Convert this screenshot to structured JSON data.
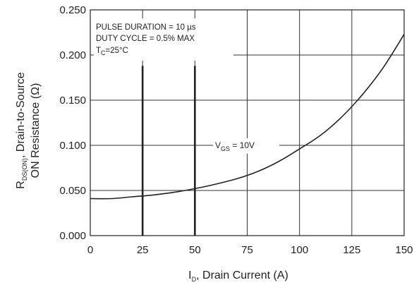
{
  "chart_data": {
    "type": "line",
    "xlabel": {
      "pre": "I",
      "sub": "D",
      "post": ", Drain Current (A)"
    },
    "ylabel": {
      "line1_pre": "R",
      "line1_sub": "DS(ON)",
      "line1_post": ", Drain-to-Source",
      "line2": "ON Resistance (Ω)"
    },
    "xlim": [
      0,
      150
    ],
    "ylim": [
      0,
      0.25
    ],
    "x_ticks": [
      0,
      25,
      50,
      75,
      100,
      125,
      150
    ],
    "x_tick_labels": [
      "0",
      "25",
      "50",
      "75",
      "100",
      "125",
      "150"
    ],
    "y_ticks": [
      0,
      0.05,
      0.1,
      0.15,
      0.2,
      0.25
    ],
    "y_tick_labels": [
      "0.000",
      "0.050",
      "0.100",
      "0.150",
      "0.200",
      "0.250"
    ],
    "grid": true,
    "notes": {
      "line1": "PULSE DURATION = 10 µs",
      "line2": "DUTY CYCLE = 0.5% MAX",
      "line3_pre": "T",
      "line3_sub": "C",
      "line3_post": "=25°C"
    },
    "curve_label": {
      "pre": "V",
      "sub": "GS",
      "post": " = 10V"
    },
    "series": [
      {
        "x": [
          0,
          10,
          20,
          30,
          40,
          50,
          60,
          70,
          80,
          90,
          100,
          110,
          120,
          130,
          140,
          150
        ],
        "y": [
          0.041,
          0.041,
          0.043,
          0.045,
          0.048,
          0.052,
          0.057,
          0.063,
          0.071,
          0.082,
          0.096,
          0.111,
          0.131,
          0.156,
          0.186,
          0.223
        ]
      }
    ],
    "markers": [
      {
        "x": 25,
        "y_top": 0.188
      },
      {
        "x": 50,
        "y_top": 0.188
      }
    ]
  }
}
